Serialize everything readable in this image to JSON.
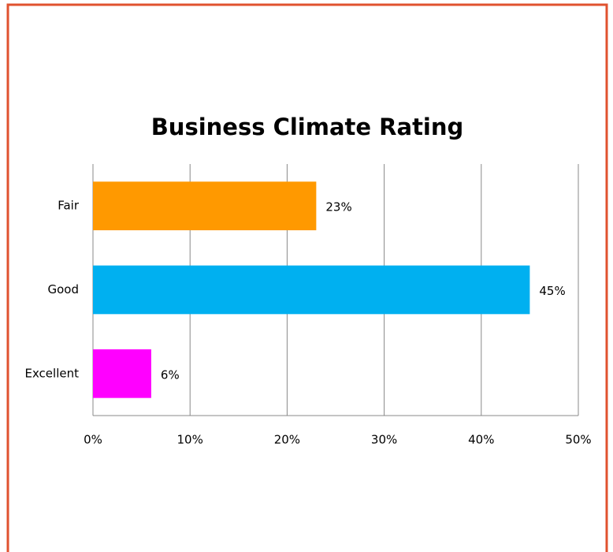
{
  "chart_data": {
    "type": "bar",
    "orientation": "horizontal",
    "title": "Business Climate Rating",
    "categories": [
      "Fair",
      "Good",
      "Excellent"
    ],
    "values": [
      23,
      45,
      6
    ],
    "value_labels": [
      "23%",
      "45%",
      "6%"
    ],
    "colors": [
      "#FF9900",
      "#00B0F0",
      "#FF00FF"
    ],
    "xlim": [
      0,
      50
    ],
    "xticks": [
      {
        "value": 0,
        "label": "0%"
      },
      {
        "value": 10,
        "label": "10%"
      },
      {
        "value": 20,
        "label": "20%"
      },
      {
        "value": 30,
        "label": "30%"
      },
      {
        "value": 40,
        "label": "40%"
      },
      {
        "value": 50,
        "label": "50%"
      }
    ],
    "grid": true
  }
}
